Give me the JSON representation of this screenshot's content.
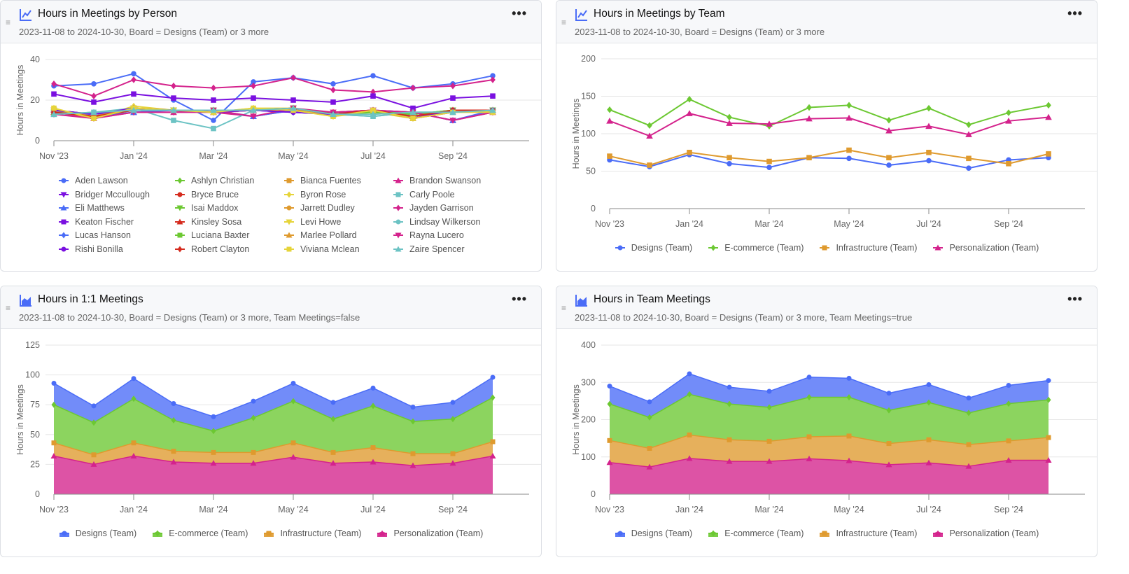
{
  "menu_label": "•••",
  "drag_handle": "≡",
  "colors": {
    "blue": "#4a6cf7",
    "green": "#6cc832",
    "orange": "#df9a2e",
    "magenta": "#d4228c",
    "purple": "#7a10e0",
    "red": "#d52b1e",
    "yellow": "#e6d43a",
    "teal": "#6cc3c4"
  },
  "chart_data": [
    {
      "type": "line",
      "title": "Hours in Meetings by Person",
      "subtitle": "2023-11-08 to 2024-10-30, Board = Designs (Team) or 3 more",
      "icon": "line-chart-icon",
      "ylabel": "Hours in Meetings",
      "ylim": [
        0,
        40
      ],
      "yticks": [
        0,
        20,
        40
      ],
      "grid": true,
      "legend": "bottom",
      "x": [
        "Nov '23",
        "Dec '23",
        "Jan '24",
        "Feb '24",
        "Mar '24",
        "Apr '24",
        "May '24",
        "Jun '24",
        "Jul '24",
        "Aug '24",
        "Sep '24",
        "Oct '24"
      ],
      "xtick_labels": [
        "Nov '23",
        "Jan '24",
        "Mar '24",
        "May '24",
        "Jul '24",
        "Sep '24"
      ],
      "series": [
        {
          "name": "Aden Lawson",
          "color": "#4a6cf7",
          "marker": "circle",
          "values": [
            27,
            28,
            33,
            20,
            10,
            29,
            31,
            28,
            32,
            26,
            28,
            32
          ]
        },
        {
          "name": "Ashlyn Christian",
          "color": "#6cc832",
          "marker": "diamond",
          "values": [
            14,
            12,
            16,
            15,
            15,
            15,
            16,
            13,
            15,
            13,
            15,
            15
          ]
        },
        {
          "name": "Bianca Fuentes",
          "color": "#df9a2e",
          "marker": "square",
          "values": [
            15,
            12,
            16,
            15,
            15,
            15,
            16,
            13,
            14,
            12,
            15,
            15
          ]
        },
        {
          "name": "Brandon Swanson",
          "color": "#d4228c",
          "marker": "triangle",
          "values": [
            14,
            11,
            14,
            14,
            14,
            12,
            15,
            13,
            15,
            14,
            10,
            14
          ]
        },
        {
          "name": "Bridger Mccullough",
          "color": "#7a10e0",
          "marker": "triangle-down",
          "values": [
            15,
            13,
            16,
            15,
            14,
            15,
            14,
            13,
            15,
            11,
            15,
            15
          ]
        },
        {
          "name": "Bryce Bruce",
          "color": "#d52b1e",
          "marker": "circle",
          "values": [
            15,
            13,
            16,
            15,
            14,
            15,
            15,
            14,
            15,
            11,
            14,
            15
          ]
        },
        {
          "name": "Byron Rose",
          "color": "#e6d43a",
          "marker": "diamond",
          "values": [
            16,
            11,
            17,
            15,
            14,
            16,
            16,
            12,
            15,
            11,
            15,
            15
          ]
        },
        {
          "name": "Carly Poole",
          "color": "#6cc3c4",
          "marker": "square",
          "values": [
            13,
            14,
            16,
            10,
            6,
            15,
            16,
            13,
            12,
            14,
            14,
            15
          ]
        },
        {
          "name": "Eli Matthews",
          "color": "#4a6cf7",
          "marker": "triangle",
          "values": [
            14,
            12,
            14,
            15,
            15,
            12,
            15,
            13,
            15,
            14,
            10,
            15
          ]
        },
        {
          "name": "Isai Maddox",
          "color": "#6cc832",
          "marker": "triangle-down",
          "values": [
            14,
            12,
            15,
            15,
            15,
            15,
            16,
            13,
            14,
            13,
            15,
            15
          ]
        },
        {
          "name": "Jarrett Dudley",
          "color": "#df9a2e",
          "marker": "circle",
          "values": [
            15,
            12,
            16,
            15,
            14,
            15,
            15,
            13,
            15,
            12,
            15,
            15
          ]
        },
        {
          "name": "Jayden Garrison",
          "color": "#d4228c",
          "marker": "diamond",
          "values": [
            28,
            22,
            30,
            27,
            26,
            27,
            31,
            25,
            24,
            26,
            27,
            30
          ]
        },
        {
          "name": "Keaton Fischer",
          "color": "#7a10e0",
          "marker": "square",
          "values": [
            23,
            19,
            23,
            21,
            20,
            21,
            20,
            19,
            22,
            16,
            21,
            22
          ]
        },
        {
          "name": "Kinsley Sosa",
          "color": "#d52b1e",
          "marker": "triangle",
          "values": [
            14,
            12,
            16,
            15,
            15,
            15,
            15,
            14,
            15,
            12,
            15,
            15
          ]
        },
        {
          "name": "Levi Howe",
          "color": "#e6d43a",
          "marker": "triangle-down",
          "values": [
            15,
            11,
            16,
            15,
            14,
            15,
            15,
            12,
            14,
            11,
            15,
            14
          ]
        },
        {
          "name": "Lindsay Wilkerson",
          "color": "#6cc3c4",
          "marker": "circle",
          "values": [
            13,
            14,
            15,
            15,
            15,
            15,
            16,
            13,
            12,
            14,
            14,
            15
          ]
        },
        {
          "name": "Lucas Hanson",
          "color": "#4a6cf7",
          "marker": "diamond",
          "values": [
            14,
            13,
            15,
            15,
            14,
            15,
            14,
            13,
            15,
            12,
            15,
            15
          ]
        },
        {
          "name": "Luciana Baxter",
          "color": "#6cc832",
          "marker": "square",
          "values": [
            14,
            12,
            15,
            15,
            15,
            15,
            16,
            13,
            14,
            13,
            15,
            15
          ]
        },
        {
          "name": "Marlee Pollard",
          "color": "#df9a2e",
          "marker": "triangle",
          "values": [
            15,
            12,
            16,
            15,
            14,
            15,
            15,
            13,
            15,
            11,
            15,
            15
          ]
        },
        {
          "name": "Rayna Lucero",
          "color": "#d4228c",
          "marker": "triangle-down",
          "values": [
            13,
            11,
            14,
            14,
            15,
            12,
            16,
            14,
            15,
            14,
            10,
            14
          ]
        },
        {
          "name": "Rishi Bonilla",
          "color": "#7a10e0",
          "marker": "circle",
          "values": [
            15,
            13,
            16,
            15,
            14,
            15,
            14,
            13,
            15,
            11,
            15,
            15
          ]
        },
        {
          "name": "Robert Clayton",
          "color": "#d52b1e",
          "marker": "diamond",
          "values": [
            14,
            12,
            15,
            15,
            15,
            15,
            16,
            13,
            15,
            12,
            15,
            15
          ]
        },
        {
          "name": "Viviana Mclean",
          "color": "#e6d43a",
          "marker": "square",
          "values": [
            16,
            11,
            16,
            15,
            14,
            16,
            15,
            12,
            15,
            11,
            14,
            14
          ]
        },
        {
          "name": "Zaire Spencer",
          "color": "#6cc3c4",
          "marker": "triangle",
          "values": [
            13,
            14,
            15,
            15,
            15,
            15,
            16,
            13,
            13,
            14,
            14,
            15
          ]
        }
      ]
    },
    {
      "type": "line",
      "title": "Hours in Meetings by Team",
      "subtitle": "2023-11-08 to 2024-10-30, Board = Designs (Team) or 3 more",
      "icon": "line-chart-icon",
      "ylabel": "Hours in Meetings",
      "ylim": [
        0,
        200
      ],
      "yticks": [
        0,
        50,
        100,
        150,
        200
      ],
      "grid": true,
      "legend": "bottom",
      "x": [
        "Nov '23",
        "Dec '23",
        "Jan '24",
        "Feb '24",
        "Mar '24",
        "Apr '24",
        "May '24",
        "Jun '24",
        "Jul '24",
        "Aug '24",
        "Sep '24",
        "Oct '24"
      ],
      "xtick_labels": [
        "Nov '23",
        "Jan '24",
        "Mar '24",
        "May '24",
        "Jul '24",
        "Sep '24"
      ],
      "series": [
        {
          "name": "Designs (Team)",
          "color": "#4a6cf7",
          "marker": "circle",
          "values": [
            65,
            56,
            72,
            60,
            55,
            68,
            67,
            58,
            64,
            54,
            65,
            68
          ]
        },
        {
          "name": "E-commerce (Team)",
          "color": "#6cc832",
          "marker": "diamond",
          "values": [
            132,
            111,
            146,
            122,
            110,
            135,
            138,
            118,
            134,
            112,
            128,
            138
          ]
        },
        {
          "name": "Infrastructure (Team)",
          "color": "#df9a2e",
          "marker": "square",
          "values": [
            70,
            58,
            75,
            68,
            63,
            68,
            78,
            68,
            75,
            67,
            60,
            73
          ]
        },
        {
          "name": "Personalization (Team)",
          "color": "#d4228c",
          "marker": "triangle",
          "values": [
            117,
            97,
            127,
            114,
            113,
            120,
            121,
            104,
            110,
            99,
            117,
            122
          ]
        }
      ]
    },
    {
      "type": "area",
      "stacked": true,
      "title": "Hours in 1:1 Meetings",
      "subtitle": "2023-11-08 to 2024-10-30, Board = Designs (Team) or 3 more, Team Meetings=false",
      "icon": "area-chart-icon",
      "ylabel": "Hours in Meetings",
      "ylim": [
        0,
        125
      ],
      "yticks": [
        0,
        25,
        50,
        75,
        100,
        125
      ],
      "grid": true,
      "legend": "bottom",
      "x": [
        "Nov '23",
        "Dec '23",
        "Jan '24",
        "Feb '24",
        "Mar '24",
        "Apr '24",
        "May '24",
        "Jun '24",
        "Jul '24",
        "Aug '24",
        "Sep '24",
        "Oct '24"
      ],
      "xtick_labels": [
        "Nov '23",
        "Jan '24",
        "Mar '24",
        "May '24",
        "Jul '24",
        "Sep '24"
      ],
      "series": [
        {
          "name": "Designs (Team)",
          "color": "#4a6cf7",
          "marker": "circle",
          "values": [
            18,
            14,
            17,
            14,
            12,
            14,
            15,
            14,
            15,
            12,
            14,
            17
          ]
        },
        {
          "name": "E-commerce (Team)",
          "color": "#6cc832",
          "marker": "diamond",
          "values": [
            32,
            27,
            37,
            26,
            18,
            29,
            35,
            28,
            35,
            27,
            29,
            37
          ]
        },
        {
          "name": "Infrastructure (Team)",
          "color": "#df9a2e",
          "marker": "square",
          "values": [
            11,
            8,
            11,
            9,
            9,
            9,
            12,
            9,
            12,
            10,
            8,
            12
          ]
        },
        {
          "name": "Personalization (Team)",
          "color": "#d4228c",
          "marker": "triangle",
          "values": [
            32,
            25,
            32,
            27,
            26,
            26,
            31,
            26,
            27,
            24,
            26,
            32
          ]
        }
      ]
    },
    {
      "type": "area",
      "stacked": true,
      "title": "Hours in Team Meetings",
      "subtitle": "2023-11-08 to 2024-10-30, Board = Designs (Team) or 3 more, Team Meetings=true",
      "icon": "area-chart-icon",
      "ylabel": "Hours in Meetings",
      "ylim": [
        0,
        400
      ],
      "yticks": [
        0,
        100,
        200,
        300,
        400
      ],
      "grid": true,
      "legend": "bottom",
      "x": [
        "Nov '23",
        "Dec '23",
        "Jan '24",
        "Feb '24",
        "Mar '24",
        "Apr '24",
        "May '24",
        "Jun '24",
        "Jul '24",
        "Aug '24",
        "Sep '24",
        "Oct '24"
      ],
      "xtick_labels": [
        "Nov '23",
        "Jan '24",
        "Mar '24",
        "May '24",
        "Jul '24",
        "Sep '24"
      ],
      "series": [
        {
          "name": "Designs (Team)",
          "color": "#4a6cf7",
          "marker": "circle",
          "values": [
            48,
            42,
            55,
            45,
            43,
            54,
            51,
            46,
            48,
            40,
            49,
            52
          ]
        },
        {
          "name": "E-commerce (Team)",
          "color": "#6cc832",
          "marker": "diamond",
          "values": [
            98,
            83,
            109,
            96,
            91,
            106,
            104,
            89,
            100,
            85,
            100,
            101
          ]
        },
        {
          "name": "Infrastructure (Team)",
          "color": "#df9a2e",
          "marker": "square",
          "values": [
            59,
            50,
            63,
            58,
            54,
            59,
            66,
            57,
            62,
            58,
            52,
            61
          ]
        },
        {
          "name": "Personalization (Team)",
          "color": "#d4228c",
          "marker": "triangle",
          "values": [
            85,
            73,
            96,
            88,
            88,
            95,
            90,
            79,
            84,
            75,
            91,
            91
          ]
        }
      ]
    }
  ]
}
